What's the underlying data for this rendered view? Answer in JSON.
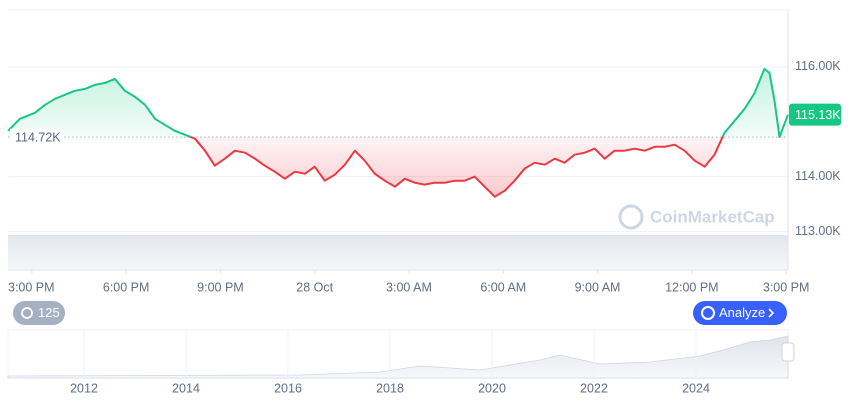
{
  "chart_data": {
    "type": "line",
    "series": [
      {
        "name": "Price",
        "up_color": "#16c784",
        "down_color": "#ea3943",
        "x": [
          -0.76,
          -0.38,
          0.1,
          0.42,
          0.74,
          1.05,
          1.37,
          1.69,
          2.01,
          2.33,
          2.64,
          2.96,
          3.28,
          3.6,
          3.92,
          4.23,
          4.55,
          4.87,
          5.19,
          5.51,
          5.82,
          6.14,
          6.46,
          6.78,
          7.1,
          7.41,
          7.73,
          8.05,
          8.37,
          8.69,
          9.0,
          9.32,
          9.64,
          9.96,
          10.28,
          10.59,
          10.91,
          11.23,
          11.55,
          11.87,
          12.18,
          12.5,
          12.82,
          13.14,
          13.46,
          13.77,
          14.09,
          14.41,
          14.73,
          15.05,
          15.36,
          15.68,
          16.0,
          16.32,
          16.64,
          16.95,
          17.27,
          17.59,
          17.91,
          18.23,
          18.54,
          18.86,
          19.18,
          19.5,
          19.82,
          20.13,
          20.45,
          20.77,
          21.09,
          21.41,
          21.72,
          22.04,
          22.36,
          22.68,
          23.0,
          23.31,
          23.47,
          23.63,
          23.79,
          24.06
        ],
        "values": [
          114836,
          115054,
          115164,
          115309,
          115418,
          115491,
          115564,
          115600,
          115673,
          115709,
          115782,
          115564,
          115455,
          115309,
          115054,
          114945,
          114836,
          114764,
          114691,
          114473,
          114200,
          114327,
          114473,
          114436,
          114327,
          114200,
          114091,
          113964,
          114091,
          114055,
          114182,
          113927,
          114036,
          114218,
          114473,
          114291,
          114055,
          113927,
          113818,
          113964,
          113891,
          113855,
          113891,
          113891,
          113927,
          113927,
          114000,
          113818,
          113636,
          113745,
          113927,
          114145,
          114255,
          114218,
          114327,
          114255,
          114400,
          114436,
          114509,
          114327,
          114473,
          114473,
          114509,
          114473,
          114545,
          114545,
          114582,
          114473,
          114291,
          114182,
          114400,
          114800,
          115018,
          115236,
          115527,
          115964,
          115891,
          115382,
          114727,
          115130
        ]
      }
    ],
    "baseline": {
      "value": 114720,
      "label": "114.72K"
    },
    "current": {
      "value": 115130,
      "label": "115.13K"
    },
    "xlim": [
      -0.76,
      24.06
    ],
    "xticks": [
      {
        "value": 0,
        "label": "3:00 PM"
      },
      {
        "value": 3,
        "label": "6:00 PM"
      },
      {
        "value": 6,
        "label": "9:00 PM"
      },
      {
        "value": 9,
        "label": "28 Oct"
      },
      {
        "value": 12,
        "label": "3:00 AM"
      },
      {
        "value": 15,
        "label": "6:00 AM"
      },
      {
        "value": 18,
        "label": "9:00 AM"
      },
      {
        "value": 21,
        "label": "12:00 PM"
      },
      {
        "value": 24,
        "label": "3:00 PM"
      }
    ],
    "ylim": [
      112300,
      117000
    ],
    "yticks": [
      {
        "value": 113000,
        "label": "113.00K"
      },
      {
        "value": 114000,
        "label": "114.00K"
      },
      {
        "value": 116000,
        "label": "116.00K"
      }
    ],
    "grid": true
  },
  "watermark": "CoinMarketCap",
  "buttons": {
    "history": "125",
    "analyze": "Analyze"
  },
  "navigator": {
    "years": [
      "2012",
      "2014",
      "2016",
      "2018",
      "2020",
      "2022",
      "2024"
    ]
  }
}
